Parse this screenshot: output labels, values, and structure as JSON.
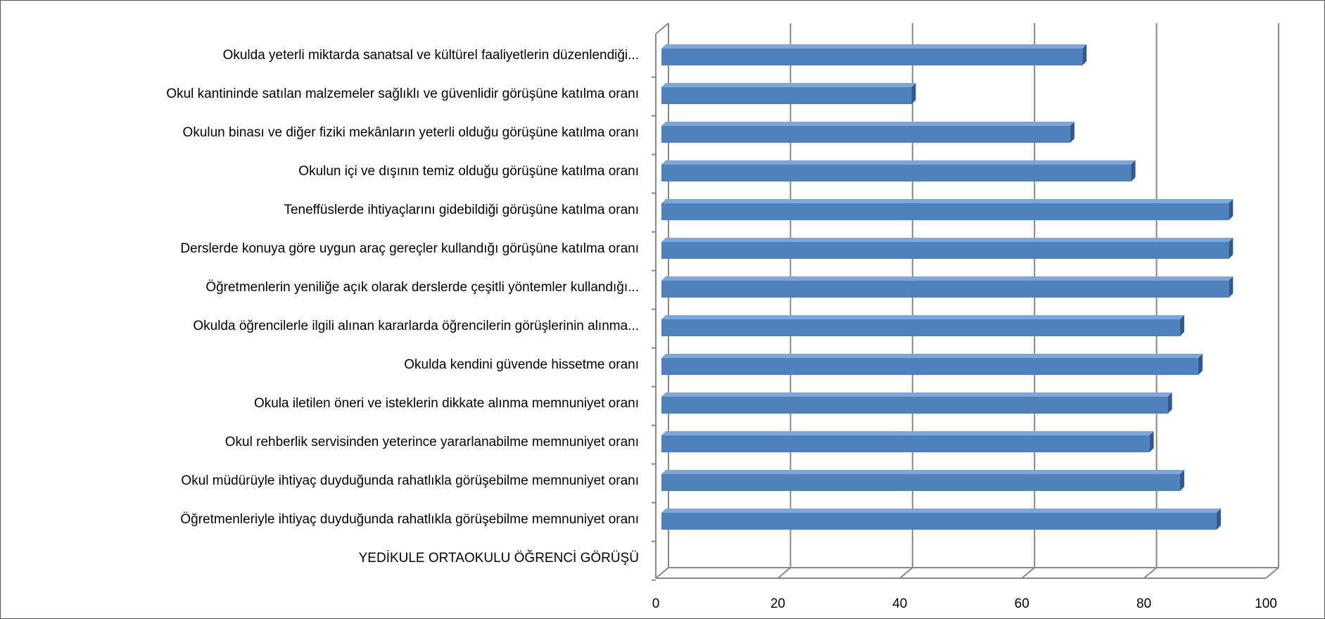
{
  "chart_data": {
    "type": "bar",
    "orientation": "horizontal",
    "categories": [
      "Okulda yeterli miktarda sanatsal ve kültürel faaliyetlerin düzenlendiği...",
      "Okul kantininde satılan malzemeler sağlıklı ve güvenlidir görüşüne katılma oranı",
      "Okulun binası ve diğer fiziki mekânların yeterli olduğu görüşüne katılma oranı",
      "Okulun içi ve dışının temiz olduğu görüşüne katılma oranı",
      "Teneffüslerde ihtiyaçlarını gidebildiği görüşüne katılma oranı",
      "Derslerde konuya göre uygun araç gereçler kullandığı görüşüne katılma oranı",
      "Öğretmenlerin yeniliğe açık olarak derslerde çeşitli yöntemler kullandığı...",
      "Okulda öğrencilerle ilgili alınan kararlarda öğrencilerin görüşlerinin alınma...",
      "Okulda kendini güvende hissetme oranı",
      "Okula iletilen öneri ve isteklerin dikkate alınma memnuniyet oranı",
      "Okul rehberlik servisinden yeterince yararlanabilme memnuniyet oranı",
      "Okul müdürüyle ihtiyaç duyduğunda rahatlıkla görüşebilme memnuniyet oranı",
      "Öğretmenleriyle ihtiyaç duyduğunda rahatlıkla görüşebilme memnuniyet oranı",
      "YEDİKULE ORTAOKULU ÖĞRENCİ GÖRÜŞÜ"
    ],
    "values": [
      69,
      41,
      67,
      77,
      93,
      93,
      93,
      85,
      88,
      83,
      80,
      85,
      91,
      null
    ],
    "color": "#4f81bd",
    "xlim": [
      0,
      100
    ],
    "xticks": [
      0,
      20,
      40,
      60,
      80,
      100
    ],
    "grid": true
  }
}
